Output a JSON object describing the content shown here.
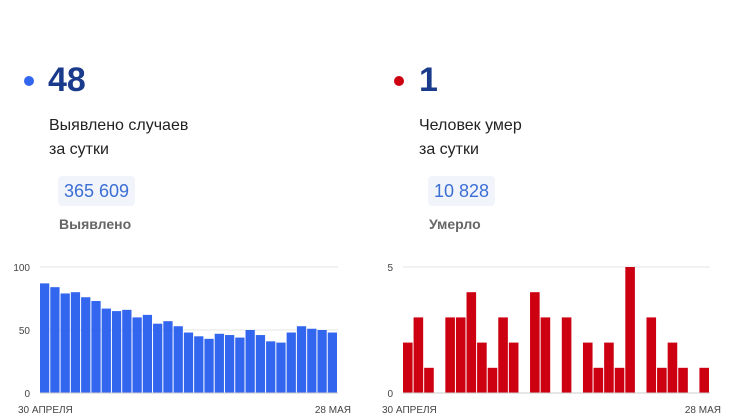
{
  "colors": {
    "cases": "#3366ee",
    "deaths": "#cc0011",
    "number": "#1a3b8c",
    "total_text": "#3b6fd4"
  },
  "cases": {
    "count": "48",
    "description_line1": "Выявлено случаев",
    "description_line2": "за сутки",
    "total": "365 609",
    "total_label": "Выявлено"
  },
  "deaths": {
    "count": "1",
    "description_line1": "Человек умер",
    "description_line2": "за сутки",
    "total": "10 828",
    "total_label": "Умерло"
  },
  "chart_data": [
    {
      "type": "bar",
      "title": "",
      "xlabel": "",
      "ylabel": "",
      "ylim": [
        0,
        100
      ],
      "yticks": [
        0,
        50,
        100
      ],
      "x_start_label": "30 АПРЕЛЯ",
      "x_end_label": "28 МАЯ",
      "grid": true,
      "color": "#3366ee",
      "values": [
        87,
        84,
        79,
        80,
        76,
        73,
        67,
        65,
        66,
        60,
        62,
        55,
        57,
        53,
        48,
        45,
        43,
        47,
        46,
        44,
        50,
        46,
        41,
        40,
        48,
        53,
        51,
        50,
        48
      ]
    },
    {
      "type": "bar",
      "title": "",
      "xlabel": "",
      "ylabel": "",
      "ylim": [
        0,
        5
      ],
      "yticks": [
        0,
        5
      ],
      "x_start_label": "30 АПРЕЛЯ",
      "x_end_label": "28 МАЯ",
      "grid": true,
      "color": "#cc0011",
      "values": [
        2,
        3,
        1,
        0,
        3,
        3,
        4,
        2,
        1,
        3,
        2,
        0,
        4,
        3,
        0,
        3,
        0,
        2,
        1,
        2,
        1,
        5,
        0,
        3,
        1,
        2,
        1,
        0,
        1
      ]
    }
  ]
}
